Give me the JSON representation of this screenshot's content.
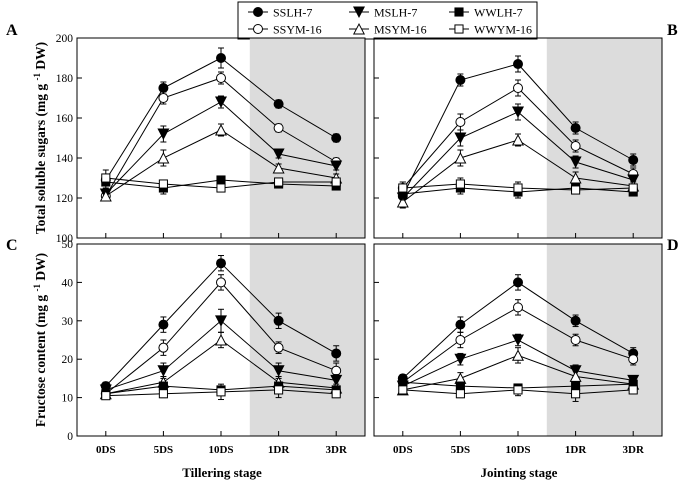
{
  "legend": [
    {
      "name": "SSLH-7",
      "marker": "circle",
      "fill": "#000000"
    },
    {
      "name": "SSYM-16",
      "marker": "circle",
      "fill": "#ffffff"
    },
    {
      "name": "MSLH-7",
      "marker": "triangle-down",
      "fill": "#000000"
    },
    {
      "name": "MSYM-16",
      "marker": "triangle-up",
      "fill": "#ffffff"
    },
    {
      "name": "WWLH-7",
      "marker": "square",
      "fill": "#000000"
    },
    {
      "name": "WWYM-16",
      "marker": "square",
      "fill": "#ffffff"
    }
  ],
  "colors": {
    "line": "#000000",
    "shade": "#dcdcdc",
    "background": "#ffffff"
  },
  "ylabel_top": "Total soluble sugars (mg g-1 DW)",
  "ylabel_bottom": "Fructose content (mg g-1 DW)",
  "xlabel_left": "Tillering stage",
  "xlabel_right": "Jointing stage",
  "chart_data": [
    {
      "id": "A",
      "panel_label": "A",
      "type": "line",
      "categories": [
        "0DS",
        "5DS",
        "10DS",
        "1DR",
        "3DR"
      ],
      "ylim": [
        100,
        200
      ],
      "yticks": [
        100,
        120,
        140,
        160,
        180,
        200
      ],
      "shaded_from": "1DR",
      "series": [
        {
          "name": "SSLH-7",
          "values": [
            129,
            175,
            190,
            167,
            150
          ],
          "errors": [
            3,
            3,
            5,
            2,
            2
          ]
        },
        {
          "name": "SSYM-16",
          "values": [
            121,
            170,
            180,
            155,
            138
          ],
          "errors": [
            2,
            3,
            3,
            2,
            2
          ]
        },
        {
          "name": "MSLH-7",
          "values": [
            122,
            152,
            168,
            142,
            136
          ],
          "errors": [
            2,
            4,
            3,
            2,
            2
          ]
        },
        {
          "name": "MSYM-16",
          "values": [
            121,
            140,
            154,
            135,
            130
          ],
          "errors": [
            2,
            4,
            3,
            2,
            2
          ]
        },
        {
          "name": "WWLH-7",
          "values": [
            128,
            125,
            129,
            127,
            126
          ],
          "errors": [
            3,
            3,
            2,
            2,
            2
          ]
        },
        {
          "name": "WWYM-16",
          "values": [
            130,
            127,
            125,
            128,
            128
          ],
          "errors": [
            4,
            2,
            2,
            2,
            2
          ]
        }
      ]
    },
    {
      "id": "B",
      "panel_label": "B",
      "type": "line",
      "categories": [
        "0DS",
        "5DS",
        "10DS",
        "1DR",
        "3DR"
      ],
      "ylim": [
        100,
        200
      ],
      "yticks": [
        100,
        120,
        140,
        160,
        180,
        200
      ],
      "shaded_from": "1DR",
      "series": [
        {
          "name": "SSLH-7",
          "values": [
            121,
            179,
            187,
            155,
            139
          ],
          "errors": [
            3,
            3,
            4,
            3,
            3
          ]
        },
        {
          "name": "SSYM-16",
          "values": [
            125,
            158,
            175,
            146,
            132
          ],
          "errors": [
            3,
            4,
            4,
            3,
            3
          ]
        },
        {
          "name": "MSLH-7",
          "values": [
            120,
            150,
            163,
            138,
            129
          ],
          "errors": [
            3,
            4,
            4,
            3,
            2
          ]
        },
        {
          "name": "MSYM-16",
          "values": [
            118,
            140,
            149,
            130,
            126
          ],
          "errors": [
            3,
            4,
            3,
            3,
            2
          ]
        },
        {
          "name": "WWLH-7",
          "values": [
            122,
            125,
            123,
            125,
            123
          ],
          "errors": [
            3,
            3,
            3,
            2,
            2
          ]
        },
        {
          "name": "WWYM-16",
          "values": [
            125,
            127,
            125,
            124,
            125
          ],
          "errors": [
            3,
            3,
            3,
            2,
            2
          ]
        }
      ]
    },
    {
      "id": "C",
      "panel_label": "C",
      "type": "line",
      "categories": [
        "0DS",
        "5DS",
        "10DS",
        "1DR",
        "3DR"
      ],
      "ylim": [
        0,
        50
      ],
      "yticks": [
        0,
        10,
        20,
        30,
        40,
        50
      ],
      "shaded_from": "1DR",
      "series": [
        {
          "name": "SSLH-7",
          "values": [
            13,
            29,
            45,
            30,
            21.5
          ],
          "errors": [
            1,
            2,
            2,
            2,
            2
          ]
        },
        {
          "name": "SSYM-16",
          "values": [
            11,
            23,
            40,
            23,
            17
          ],
          "errors": [
            1,
            2,
            2,
            1.5,
            2
          ]
        },
        {
          "name": "MSLH-7",
          "values": [
            12,
            17,
            30,
            17,
            14.5
          ],
          "errors": [
            1,
            2,
            3,
            2,
            1.5
          ]
        },
        {
          "name": "MSYM-16",
          "values": [
            11,
            14,
            25,
            14,
            12.5
          ],
          "errors": [
            1,
            1.5,
            2,
            1.5,
            1
          ]
        },
        {
          "name": "WWLH-7",
          "values": [
            11,
            13,
            12,
            13,
            12
          ],
          "errors": [
            1,
            1,
            1,
            1,
            1
          ]
        },
        {
          "name": "WWYM-16",
          "values": [
            10.5,
            11,
            11.5,
            12,
            11
          ],
          "errors": [
            1,
            1,
            2,
            2,
            1
          ]
        }
      ]
    },
    {
      "id": "D",
      "panel_label": "D",
      "type": "line",
      "categories": [
        "0DS",
        "5DS",
        "10DS",
        "1DR",
        "3DR"
      ],
      "ylim": [
        0,
        50
      ],
      "yticks": [
        0,
        10,
        20,
        30,
        40,
        50
      ],
      "shaded_from": "1DR",
      "series": [
        {
          "name": "SSLH-7",
          "values": [
            15,
            29,
            40,
            30,
            21.5
          ],
          "errors": [
            1,
            2,
            2,
            1.5,
            1.5
          ]
        },
        {
          "name": "SSYM-16",
          "values": [
            14,
            25,
            33.5,
            25,
            20
          ],
          "errors": [
            1,
            2,
            2,
            1.5,
            1.5
          ]
        },
        {
          "name": "MSLH-7",
          "values": [
            13,
            20,
            25,
            17,
            14.5
          ],
          "errors": [
            1,
            1.5,
            1.5,
            1.5,
            1
          ]
        },
        {
          "name": "MSYM-16",
          "values": [
            12,
            15,
            21,
            15.5,
            13.5
          ],
          "errors": [
            1,
            1.5,
            2,
            1.5,
            1
          ]
        },
        {
          "name": "WWLH-7",
          "values": [
            14,
            13,
            12.5,
            13,
            13.5
          ],
          "errors": [
            1,
            1,
            1,
            1,
            1
          ]
        },
        {
          "name": "WWYM-16",
          "values": [
            12,
            11,
            12,
            11,
            12
          ],
          "errors": [
            1,
            1,
            1.5,
            2,
            1
          ]
        }
      ]
    }
  ]
}
